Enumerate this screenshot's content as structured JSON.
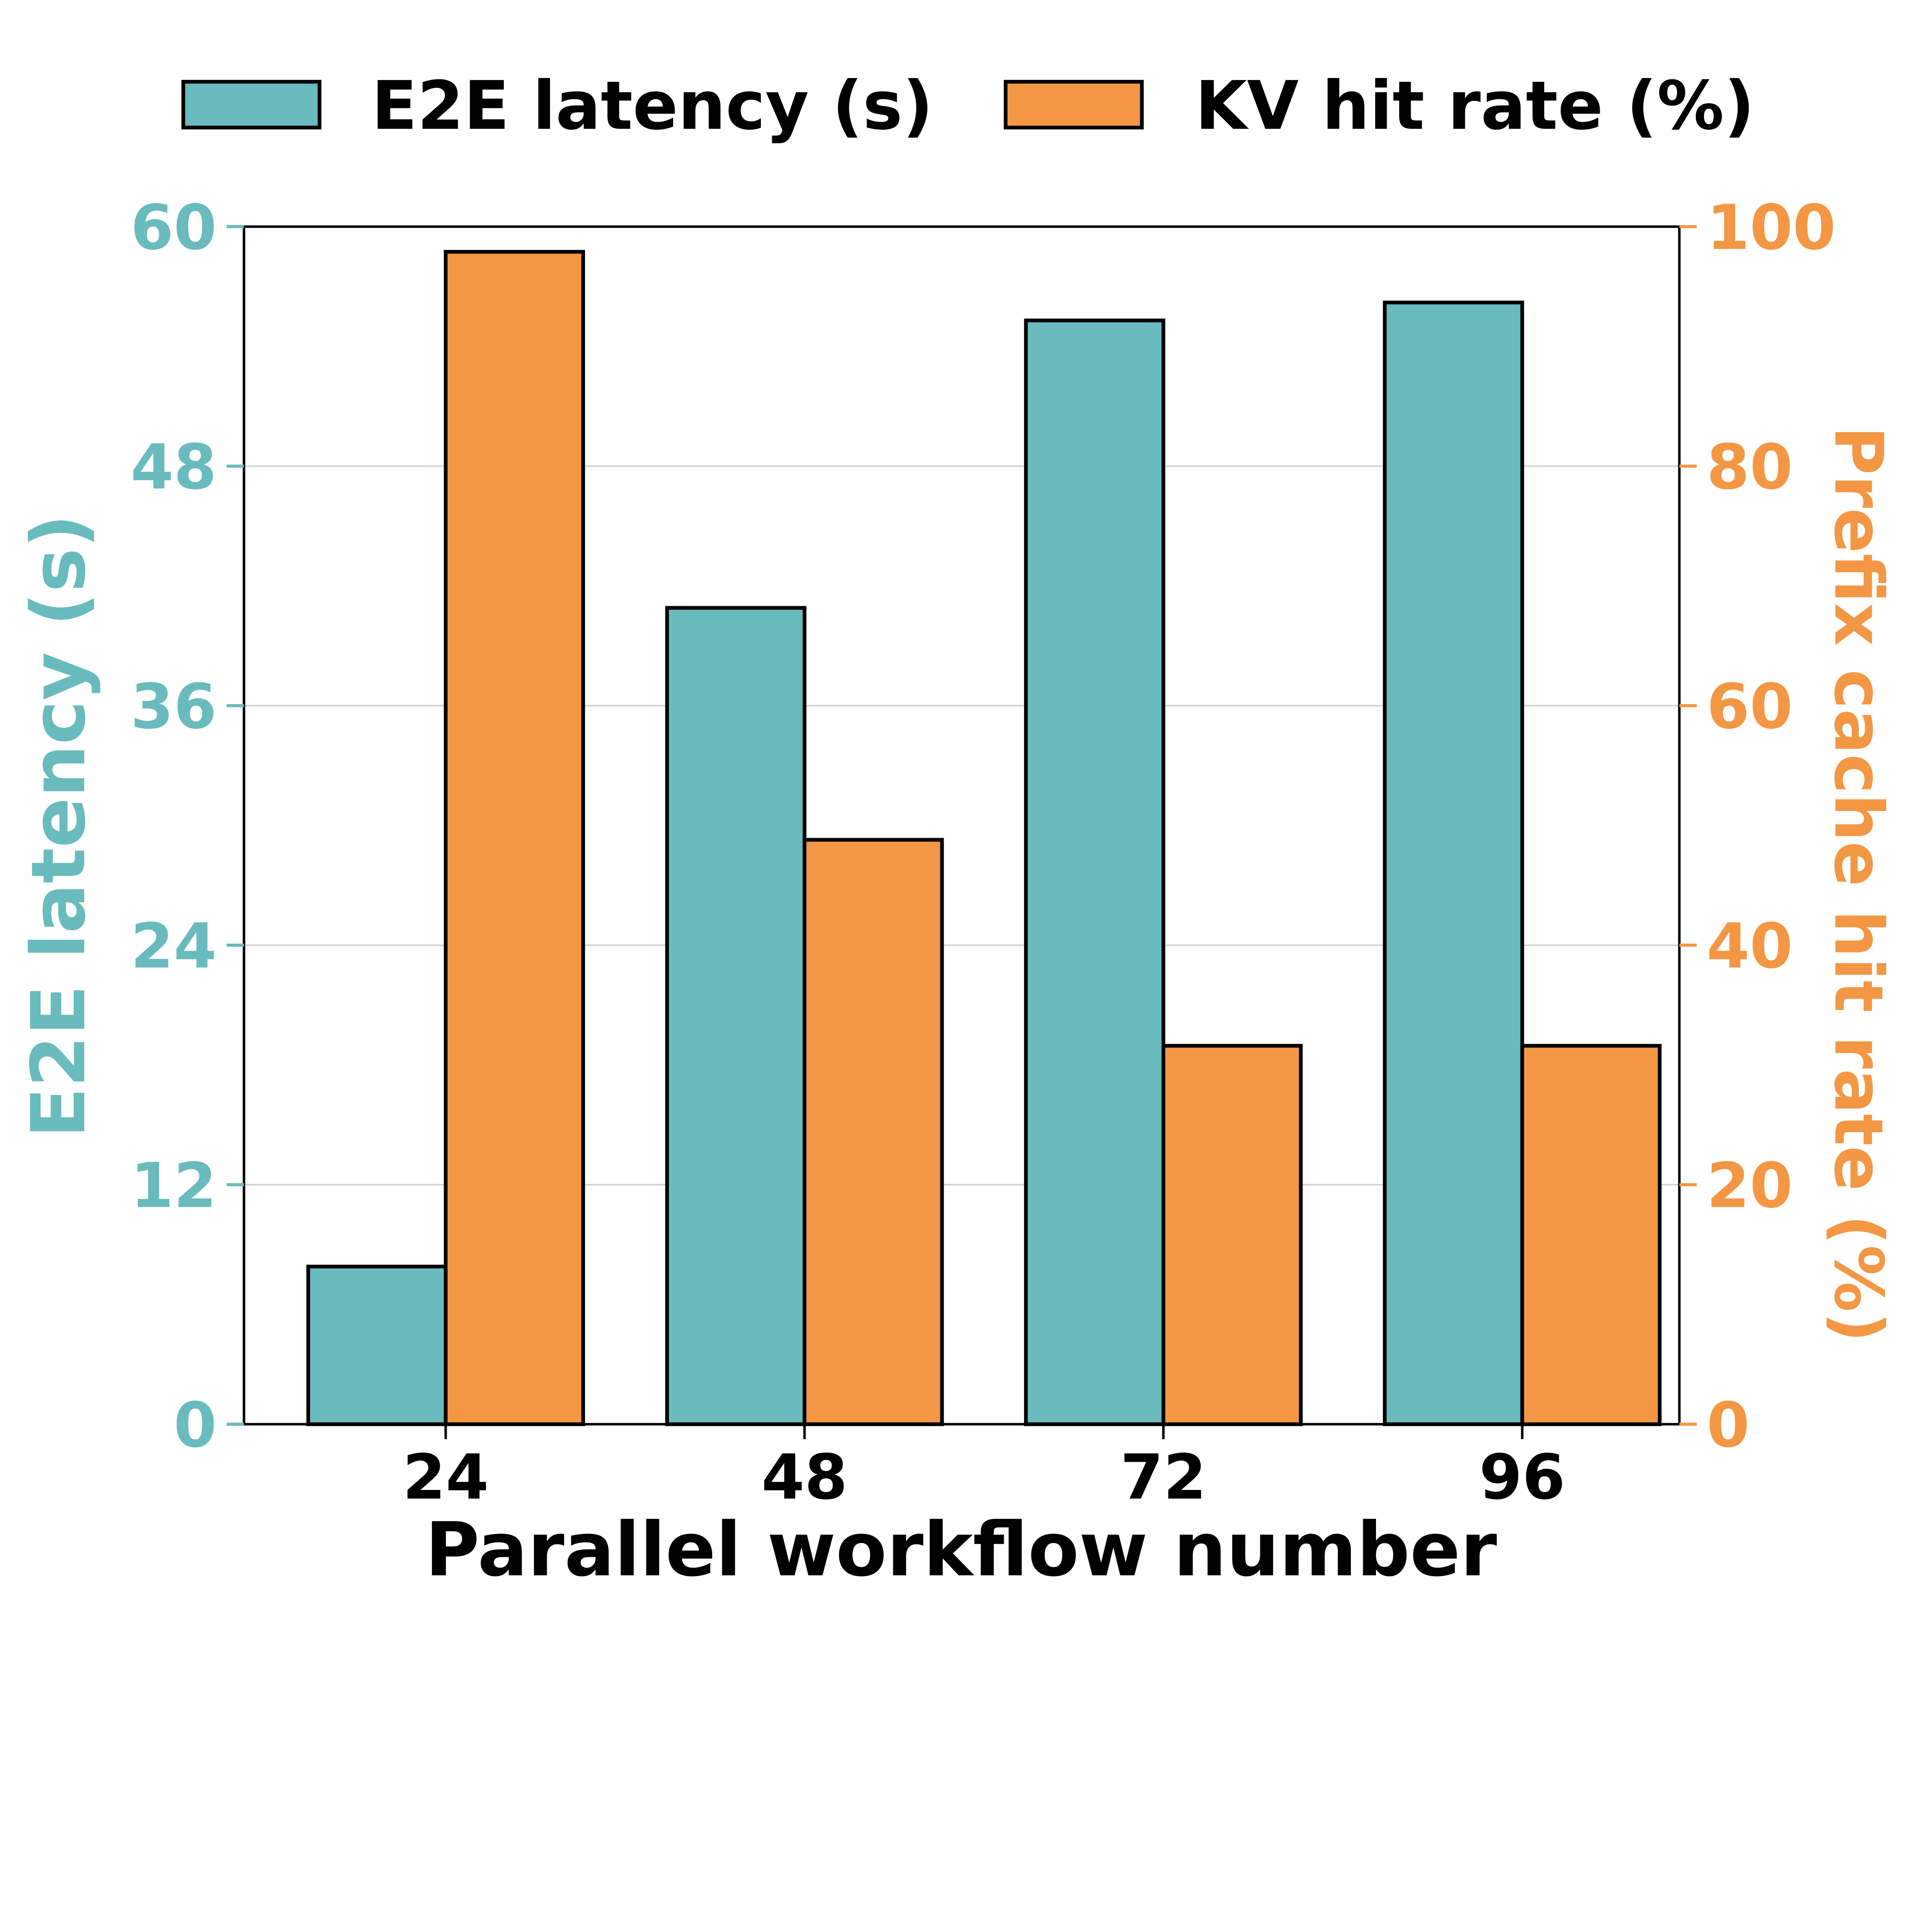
{
  "chart_data": {
    "type": "bar",
    "categories": [
      "24",
      "48",
      "72",
      "96"
    ],
    "xlabel": "Parallel workflow number",
    "ylabel": "E2E latency (s)",
    "ylabel_right": "Prefix cache hit rate (%)",
    "ylim": [
      0,
      60
    ],
    "ylim_right": [
      0,
      100
    ],
    "yticks": [
      "0",
      "12",
      "24",
      "36",
      "48",
      "60"
    ],
    "yticks_right": [
      "0",
      "20",
      "40",
      "60",
      "80",
      "100"
    ],
    "grid": "horizontal",
    "legend_position": "top",
    "series": [
      {
        "name": "E2E latency (s)",
        "axis": "left",
        "color": "#69BBBD",
        "values": [
          7.9,
          40.9,
          55.3,
          56.2
        ]
      },
      {
        "name": "KV hit rate (%)",
        "axis": "right",
        "color": "#F39744",
        "values": [
          97.9,
          48.8,
          31.6,
          31.6
        ]
      }
    ]
  }
}
